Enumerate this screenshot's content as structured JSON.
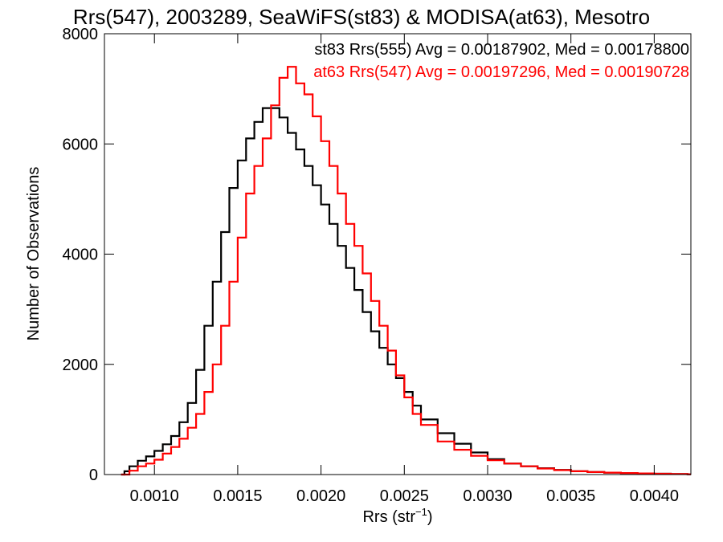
{
  "chart_data": {
    "type": "line",
    "title": "Rrs(547), 2003289, SeaWiFS(st83) & MODISA(at63), Mesotro",
    "xlabel": "Rrs (str",
    "xlabel_superscript": "−1",
    "xlabel_suffix": ")",
    "ylabel": "Number of Observations",
    "xlim": [
      0.0007,
      0.00422
    ],
    "ylim": [
      0,
      8000
    ],
    "x_ticks": [
      0.001,
      0.0015,
      0.002,
      0.0025,
      0.003,
      0.0035,
      0.004
    ],
    "x_tick_labels": [
      "0.0010",
      "0.0015",
      "0.0020",
      "0.0025",
      "0.0030",
      "0.0035",
      "0.0040"
    ],
    "y_ticks": [
      0,
      2000,
      4000,
      6000,
      8000
    ],
    "y_tick_labels": [
      "0",
      "2000",
      "4000",
      "6000",
      "8000"
    ],
    "legend_position": "top-right",
    "legend": [
      {
        "text": "st83 Rrs(555) Avg = 0.00187902, Med = 0.00178800",
        "color": "#000000"
      },
      {
        "text": "at63 Rrs(547) Avg = 0.00197296, Med = 0.00190728",
        "color": "#ff0000"
      }
    ],
    "series": [
      {
        "name": "st83",
        "color": "#000000",
        "x": [
          0.0008,
          0.00082,
          0.00085,
          0.0009,
          0.00095,
          0.001,
          0.00105,
          0.0011,
          0.00115,
          0.0012,
          0.00125,
          0.0013,
          0.00135,
          0.0014,
          0.00145,
          0.0015,
          0.00155,
          0.0016,
          0.00165,
          0.0017,
          0.00175,
          0.0018,
          0.00185,
          0.0019,
          0.00195,
          0.002,
          0.00205,
          0.0021,
          0.00215,
          0.0022,
          0.00225,
          0.0023,
          0.00235,
          0.0024,
          0.00245,
          0.0025,
          0.00255,
          0.0026,
          0.0027,
          0.0028,
          0.0029,
          0.003,
          0.0031,
          0.0032,
          0.0033,
          0.0034,
          0.0035,
          0.0036,
          0.0037,
          0.0038,
          0.0039,
          0.004,
          0.0041,
          0.0042
        ],
        "y": [
          0,
          60,
          150,
          250,
          330,
          430,
          550,
          700,
          950,
          1300,
          1900,
          2700,
          3500,
          4400,
          5200,
          5700,
          6100,
          6400,
          6650,
          6650,
          6480,
          6200,
          5900,
          5600,
          5250,
          4900,
          4550,
          4150,
          3750,
          3350,
          2950,
          2600,
          2300,
          2000,
          1750,
          1500,
          1250,
          1000,
          750,
          560,
          400,
          280,
          200,
          150,
          115,
          85,
          60,
          45,
          35,
          28,
          20,
          15,
          10,
          5
        ]
      },
      {
        "name": "at63",
        "color": "#ff0000",
        "x": [
          0.0008,
          0.00085,
          0.0009,
          0.00095,
          0.001,
          0.00105,
          0.0011,
          0.00115,
          0.0012,
          0.00125,
          0.0013,
          0.00135,
          0.0014,
          0.00145,
          0.0015,
          0.00155,
          0.0016,
          0.00165,
          0.0017,
          0.00175,
          0.0018,
          0.00185,
          0.0019,
          0.00195,
          0.002,
          0.00205,
          0.0021,
          0.00215,
          0.0022,
          0.00225,
          0.0023,
          0.00235,
          0.0024,
          0.00245,
          0.0025,
          0.00255,
          0.0026,
          0.0027,
          0.0028,
          0.0029,
          0.003,
          0.0031,
          0.0032,
          0.0033,
          0.0034,
          0.0035,
          0.0036,
          0.0037,
          0.0038,
          0.0039,
          0.004,
          0.0041,
          0.0042
        ],
        "y": [
          0,
          70,
          150,
          200,
          270,
          380,
          500,
          650,
          850,
          1100,
          1500,
          2000,
          2700,
          3500,
          4300,
          5100,
          5600,
          6100,
          6700,
          7200,
          7400,
          7100,
          6900,
          6500,
          6050,
          5600,
          5100,
          4550,
          4150,
          3650,
          3150,
          2700,
          2250,
          1800,
          1400,
          1100,
          900,
          600,
          450,
          340,
          260,
          200,
          150,
          110,
          80,
          60,
          45,
          35,
          28,
          20,
          15,
          10,
          5
        ]
      }
    ]
  }
}
